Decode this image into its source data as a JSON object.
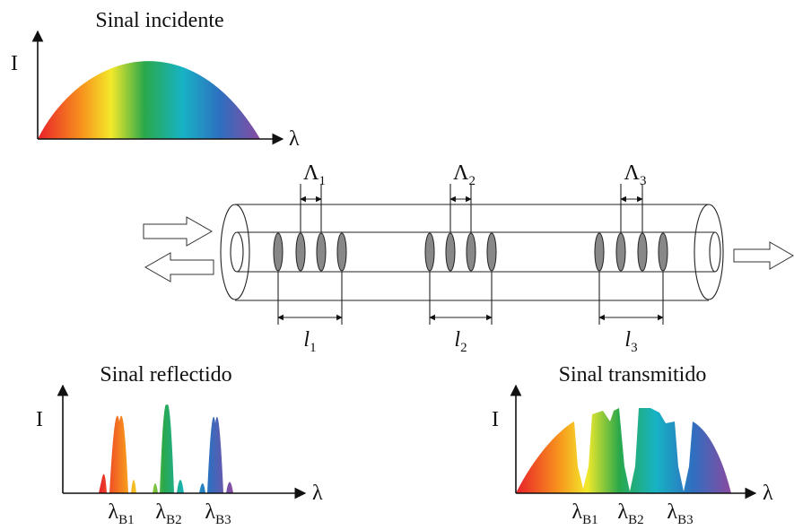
{
  "incident": {
    "title": "Sinal incidente",
    "y_label": "I",
    "x_label": "λ"
  },
  "fiber": {
    "gratings": [
      {
        "period": {
          "symbol": "Λ",
          "sub": "1"
        },
        "length": {
          "symbol": "l",
          "sub": "1"
        }
      },
      {
        "period": {
          "symbol": "Λ",
          "sub": "2"
        },
        "length": {
          "symbol": "l",
          "sub": "2"
        }
      },
      {
        "period": {
          "symbol": "Λ",
          "sub": "3"
        },
        "length": {
          "symbol": "l",
          "sub": "3"
        }
      }
    ]
  },
  "reflected": {
    "title": "Sinal reflectido",
    "y_label": "I",
    "x_label": "λ",
    "peaks": [
      {
        "symbol": "λ",
        "sub": "B1"
      },
      {
        "symbol": "λ",
        "sub": "B2"
      },
      {
        "symbol": "λ",
        "sub": "B3"
      }
    ]
  },
  "transmitted": {
    "title": "Sinal transmitido",
    "y_label": "I",
    "x_label": "λ",
    "notches": [
      {
        "symbol": "λ",
        "sub": "B1"
      },
      {
        "symbol": "λ",
        "sub": "B2"
      },
      {
        "symbol": "λ",
        "sub": "B3"
      }
    ]
  }
}
